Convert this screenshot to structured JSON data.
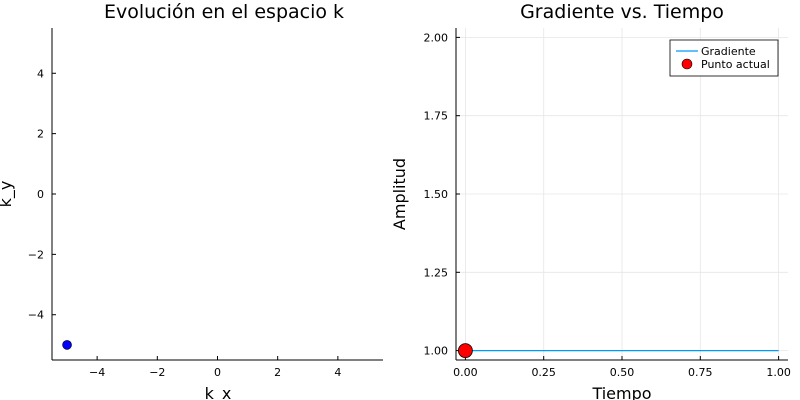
{
  "chart_data": [
    {
      "type": "scatter",
      "title": "Evolución en el espacio k",
      "xlabel": "k_x",
      "ylabel": "k_y",
      "xlim": [
        -5.5,
        5.5
      ],
      "ylim": [
        -5.5,
        5.5
      ],
      "xticks": [
        -4,
        -2,
        0,
        2,
        4
      ],
      "yticks": [
        -4,
        -2,
        0,
        2,
        4
      ],
      "xtick_labels": [
        "−4",
        "−2",
        "0",
        "2",
        "4"
      ],
      "ytick_labels": [
        "−4",
        "−2",
        "0",
        "2",
        "4"
      ],
      "grid": false,
      "points": [
        {
          "x": -5,
          "y": -5
        }
      ],
      "point_color": "#0000ff"
    },
    {
      "type": "line",
      "title": "Gradiente vs. Tiempo",
      "xlabel": "Tiempo",
      "ylabel": "Amplitud",
      "xlim": [
        -0.03,
        1.03
      ],
      "ylim": [
        0.97,
        2.03
      ],
      "xticks": [
        0,
        0.25,
        0.5,
        0.75,
        1.0
      ],
      "yticks": [
        1.0,
        1.25,
        1.5,
        1.75,
        2.0
      ],
      "xtick_labels": [
        "0.00",
        "0.25",
        "0.50",
        "0.75",
        "1.00"
      ],
      "ytick_labels": [
        "1.00",
        "1.25",
        "1.50",
        "1.75",
        "2.00"
      ],
      "grid": true,
      "legend_position": "top-right",
      "series": [
        {
          "name": "Gradiente",
          "type": "line",
          "color": "#009af9",
          "x": [
            0,
            1
          ],
          "y": [
            1,
            1
          ]
        },
        {
          "name": "Punto actual",
          "type": "scatter",
          "color": "#ff0000",
          "x": [
            0
          ],
          "y": [
            1
          ]
        }
      ]
    }
  ]
}
